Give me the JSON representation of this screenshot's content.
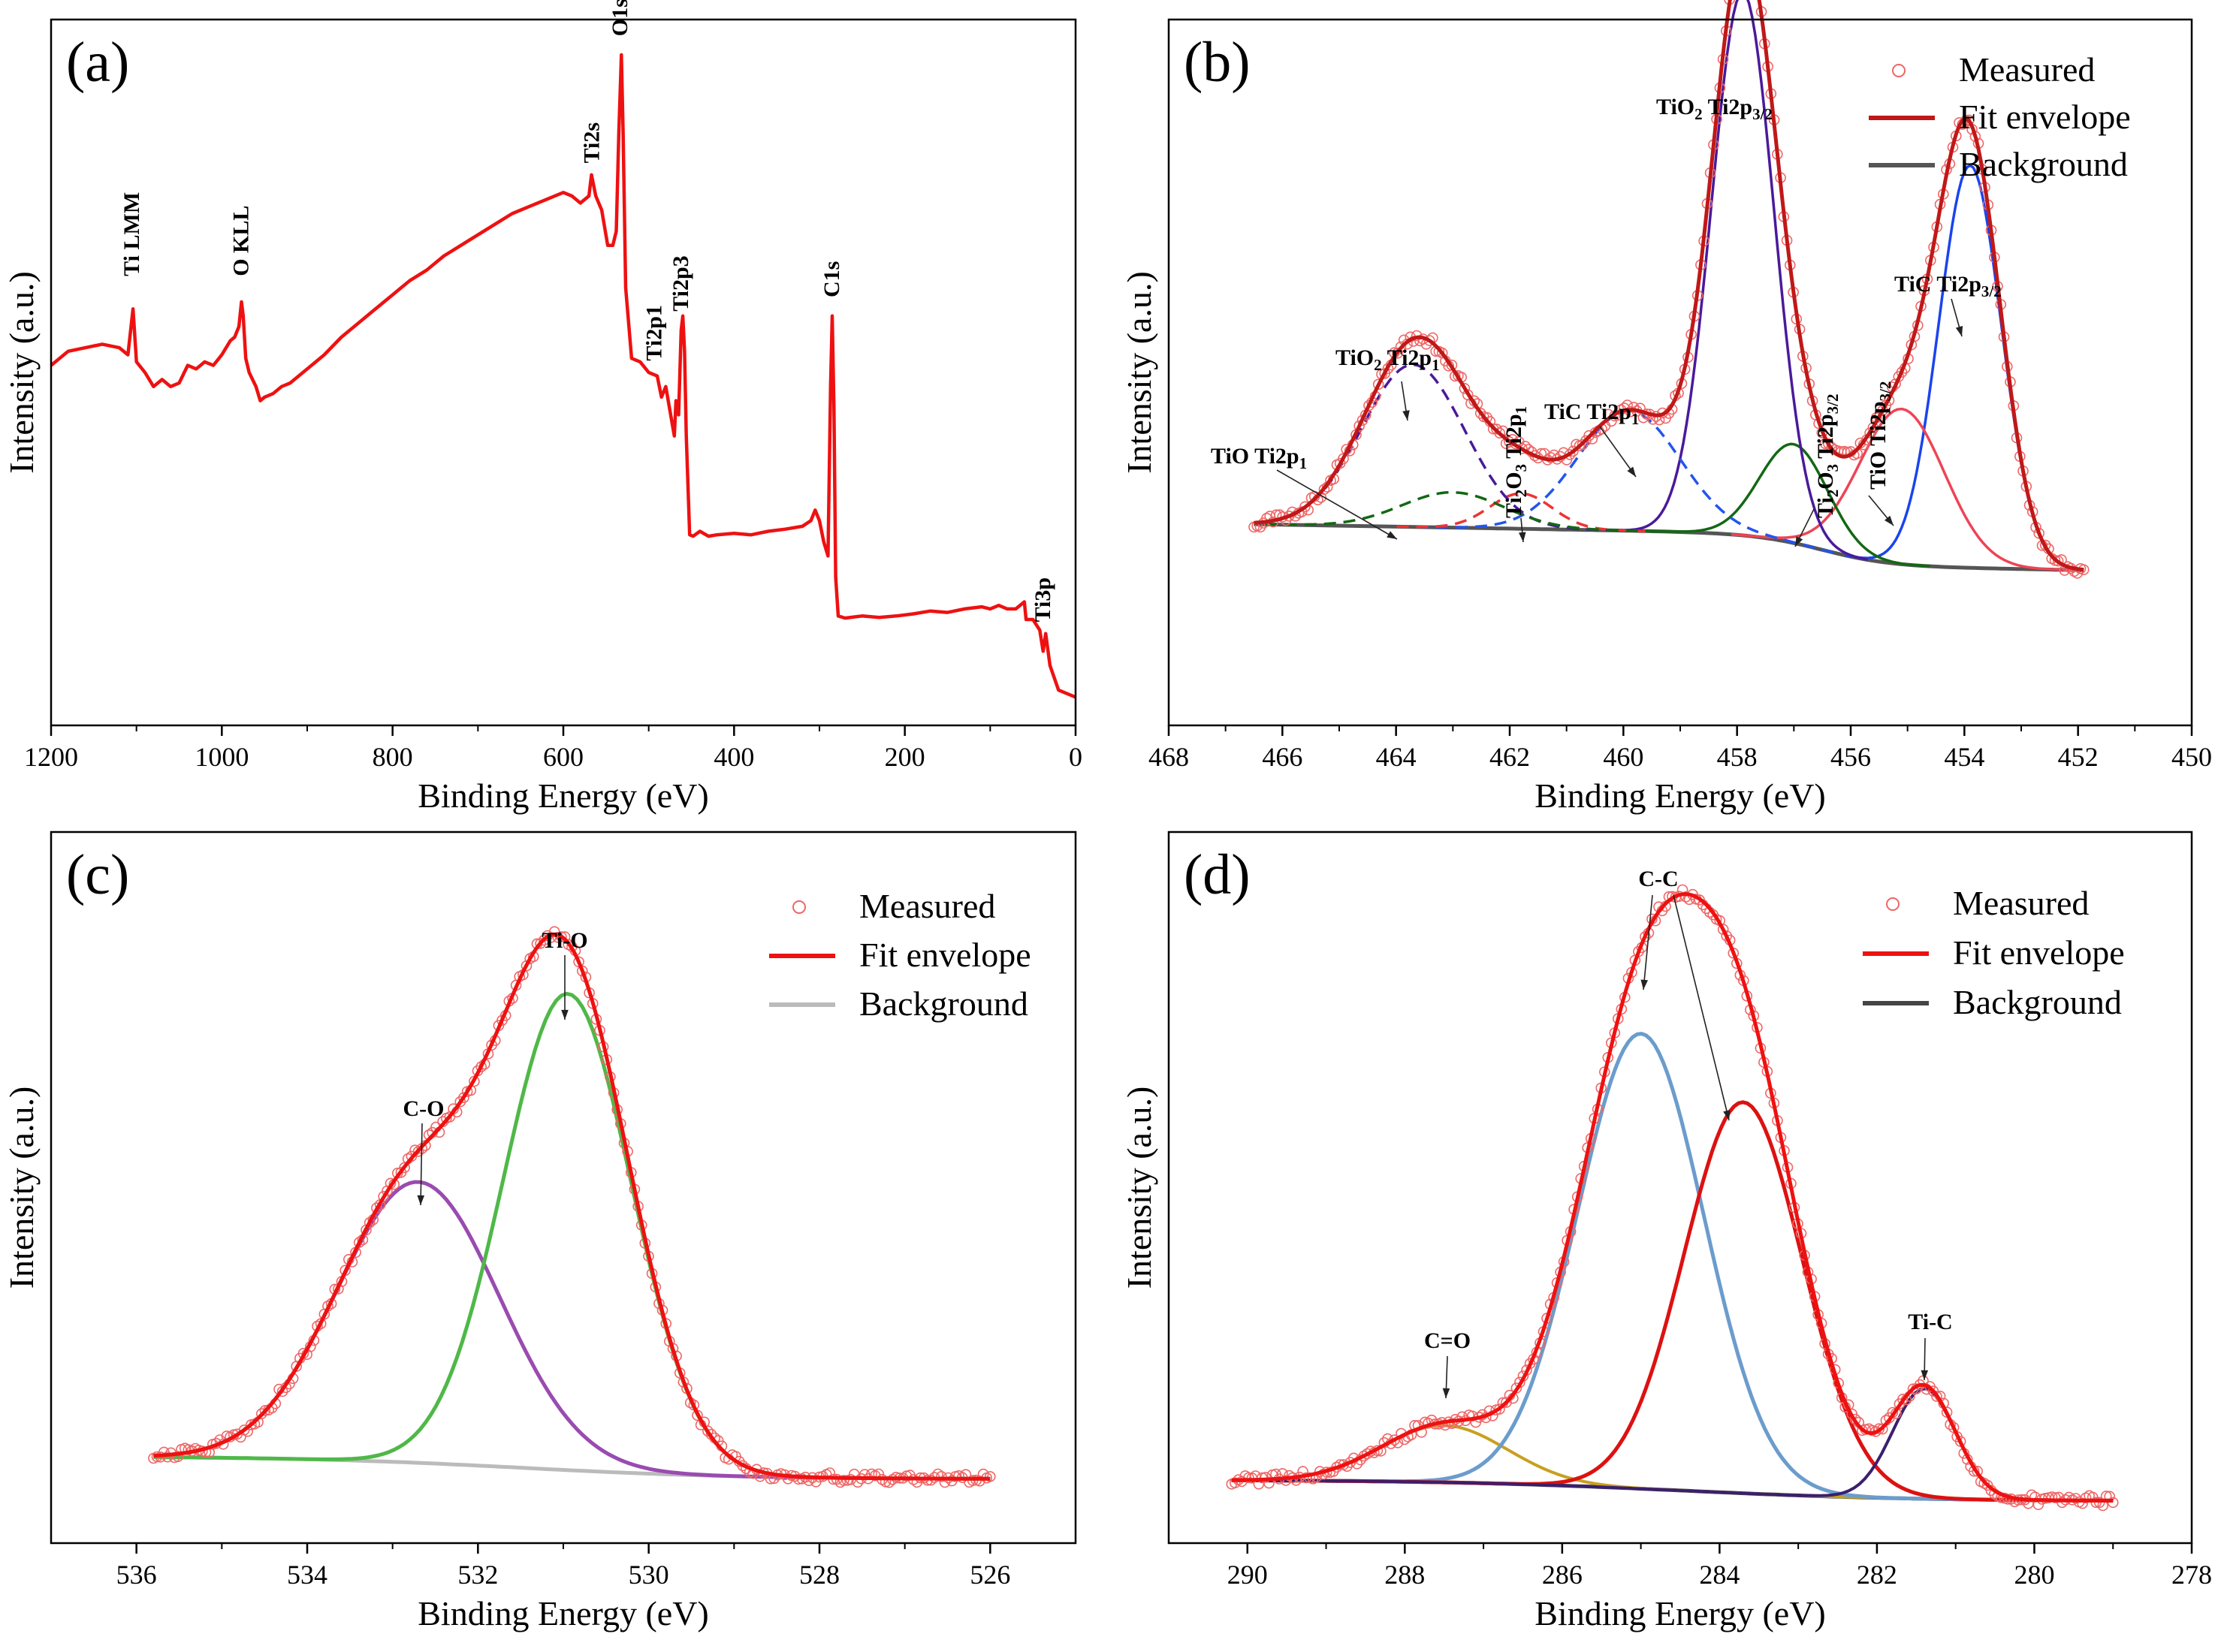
{
  "chart_data": [
    {
      "panel": "(a)",
      "type": "line",
      "xlabel": "Binding Energy (eV)",
      "ylabel": "Intensity (a.u.)",
      "xlim": [
        1200,
        0
      ],
      "ylim": [
        0,
        100
      ],
      "x_reversed": true,
      "xticks": [
        1200,
        1000,
        800,
        600,
        400,
        200,
        0
      ],
      "series": [
        {
          "color": "#ee1111",
          "style": "solid",
          "points": [
            [
              1200,
              51
            ],
            [
              1180,
              53
            ],
            [
              1160,
              53.5
            ],
            [
              1140,
              54
            ],
            [
              1120,
              53.5
            ],
            [
              1110,
              52.5
            ],
            [
              1104,
              59
            ],
            [
              1100,
              51.5
            ],
            [
              1090,
              50
            ],
            [
              1080,
              48
            ],
            [
              1070,
              49
            ],
            [
              1060,
              48
            ],
            [
              1050,
              48.5
            ],
            [
              1040,
              51
            ],
            [
              1030,
              50.5
            ],
            [
              1020,
              51.5
            ],
            [
              1010,
              51
            ],
            [
              1000,
              52.5
            ],
            [
              990,
              54.5
            ],
            [
              985,
              55
            ],
            [
              980,
              56.5
            ],
            [
              977,
              60
            ],
            [
              975,
              58
            ],
            [
              972,
              52
            ],
            [
              968,
              50
            ],
            [
              960,
              48
            ],
            [
              955,
              46
            ],
            [
              950,
              46.5
            ],
            [
              940,
              47
            ],
            [
              930,
              48
            ],
            [
              920,
              48.5
            ],
            [
              900,
              50.5
            ],
            [
              880,
              52.5
            ],
            [
              860,
              55
            ],
            [
              840,
              57
            ],
            [
              820,
              59
            ],
            [
              800,
              61
            ],
            [
              780,
              63
            ],
            [
              760,
              64.5
            ],
            [
              740,
              66.5
            ],
            [
              720,
              68
            ],
            [
              700,
              69.5
            ],
            [
              680,
              71
            ],
            [
              660,
              72.5
            ],
            [
              640,
              73.5
            ],
            [
              620,
              74.5
            ],
            [
              600,
              75.5
            ],
            [
              590,
              75
            ],
            [
              580,
              74
            ],
            [
              570,
              75
            ],
            [
              567,
              78
            ],
            [
              562,
              75
            ],
            [
              555,
              73
            ],
            [
              548,
              68
            ],
            [
              542,
              68
            ],
            [
              538,
              70
            ],
            [
              535,
              84
            ],
            [
              532,
              95
            ],
            [
              530,
              84
            ],
            [
              527,
              62
            ],
            [
              520,
              52
            ],
            [
              510,
              51.5
            ],
            [
              500,
              50
            ],
            [
              490,
              49.5
            ],
            [
              485,
              46.5
            ],
            [
              480,
              48
            ],
            [
              475,
              44.5
            ],
            [
              470,
              41
            ],
            [
              468,
              46
            ],
            [
              465,
              44
            ],
            [
              462,
              56
            ],
            [
              460,
              58
            ],
            [
              458,
              53
            ],
            [
              456,
              41
            ],
            [
              452,
              27
            ],
            [
              448,
              26.8
            ],
            [
              440,
              27.5
            ],
            [
              430,
              26.8
            ],
            [
              420,
              27
            ],
            [
              400,
              27.2
            ],
            [
              380,
              27
            ],
            [
              360,
              27.5
            ],
            [
              340,
              27.8
            ],
            [
              320,
              28.2
            ],
            [
              310,
              29
            ],
            [
              305,
              30.5
            ],
            [
              300,
              29
            ],
            [
              295,
              26
            ],
            [
              290,
              24
            ],
            [
              287,
              48
            ],
            [
              285,
              58
            ],
            [
              283,
              45
            ],
            [
              281,
              21
            ],
            [
              278,
              15.5
            ],
            [
              270,
              15.2
            ],
            [
              250,
              15.5
            ],
            [
              230,
              15.3
            ],
            [
              210,
              15.5
            ],
            [
              190,
              15.8
            ],
            [
              170,
              16.2
            ],
            [
              150,
              16
            ],
            [
              130,
              16.5
            ],
            [
              110,
              16.8
            ],
            [
              100,
              16.5
            ],
            [
              90,
              17
            ],
            [
              80,
              16.5
            ],
            [
              70,
              16.5
            ],
            [
              60,
              17.5
            ],
            [
              58,
              15
            ],
            [
              50,
              15
            ],
            [
              42,
              13.5
            ],
            [
              38,
              10.5
            ],
            [
              35,
              13
            ],
            [
              30,
              8.5
            ],
            [
              20,
              5
            ],
            [
              10,
              4.5
            ],
            [
              0,
              4
            ]
          ]
        }
      ],
      "annotations": [
        "Ti LMM",
        "O KLL",
        "Ti2s",
        "O1s",
        "Ti2p1",
        "Ti2p3",
        "C1s",
        "Ti3p"
      ],
      "annotation_x": [
        1105,
        977,
        566,
        533,
        493,
        462,
        285,
        38
      ]
    },
    {
      "panel": "(b)",
      "type": "line",
      "xlabel": "Binding Energy (eV)",
      "ylabel": "Intensity (a.u.)",
      "xlim": [
        468,
        450
      ],
      "ylim": [
        0,
        100
      ],
      "x_reversed": true,
      "xticks": [
        468,
        466,
        464,
        462,
        460,
        458,
        456,
        454,
        452,
        450
      ],
      "legend_position": "top-right",
      "legend": [
        "Measured",
        "Fit envelope",
        "Background"
      ],
      "colors": {
        "measured": "#ee6666",
        "envelope": "#c01818",
        "background": "#555555"
      },
      "peaks_eV": {
        "TiC Ti2p3/2": 453.9,
        "TiO Ti2p3/2": 455.1,
        "Ti2O3 Ti2p3/2": 457.0,
        "TiO2 Ti2p3/2": 457.9,
        "TiC Ti2p1": 459.9,
        "Ti2O3 Ti2p1": 461.8,
        "TiO2 Ti2p1": 463.7,
        "TiO Ti2p1": 463.0
      },
      "annotations": [
        {
          "main": "TiO",
          "sub": "2",
          "main2": " Ti2p",
          "sub2": "3/2"
        },
        {
          "main": "TiC Ti2p",
          "sub": "3/2"
        },
        {
          "main": "TiO",
          "sub": "2",
          "main2": " Ti2p",
          "sub2": "1"
        },
        {
          "main": "TiC Ti2p",
          "sub": "1"
        },
        {
          "main": "TiO Ti2p",
          "sub": "1"
        },
        {
          "main": "Ti",
          "sub": "2",
          "main2": "O",
          "sub2": "3",
          "main3": " Ti2p",
          "sub3": "1"
        },
        {
          "main": "Ti",
          "sub": "2",
          "main2": "O",
          "sub2": "3",
          "main3": " Ti2p",
          "sub3": "3/2"
        },
        {
          "main": "TiO Ti2p",
          "sub": "3/2"
        }
      ]
    },
    {
      "panel": "(c)",
      "type": "line",
      "xlabel": "Binding Energy (eV)",
      "ylabel": "Intensity (a.u.)",
      "xlim": [
        537,
        525
      ],
      "ylim": [
        0,
        100
      ],
      "x_reversed": true,
      "xticks": [
        536,
        534,
        532,
        530,
        528,
        526
      ],
      "legend_position": "top-right",
      "legend": [
        "Measured",
        "Fit envelope",
        "Background"
      ],
      "colors": {
        "measured": "#ee6666",
        "envelope": "#ee1111",
        "background": "#bbbbbb"
      },
      "peaks_eV": {
        "Ti-O": 530.95,
        "C-O": 532.7
      },
      "annotations": [
        "Ti-O",
        "C-O"
      ]
    },
    {
      "panel": "(d)",
      "type": "line",
      "xlabel": "Binding Energy (eV)",
      "ylabel": "Intensity (a.u.)",
      "xlim": [
        291,
        278
      ],
      "ylim": [
        0,
        100
      ],
      "x_reversed": true,
      "xticks": [
        290,
        288,
        286,
        284,
        282,
        280,
        278
      ],
      "legend_position": "top-right",
      "legend": [
        "Measured",
        "Fit envelope",
        "Background"
      ],
      "colors": {
        "measured": "#ee6666",
        "envelope": "#ee1111",
        "background": "#444444"
      },
      "peaks_eV": {
        "C-C": 285.0,
        "C-C (2)": 283.7,
        "C=O": 287.5,
        "Ti-C": 281.4
      },
      "annotations": [
        "C-C",
        "C=O",
        "Ti-C"
      ]
    }
  ]
}
